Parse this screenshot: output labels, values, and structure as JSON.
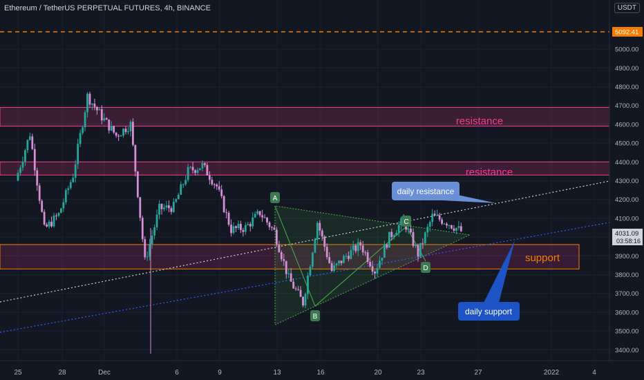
{
  "title": "Ethereum / TetherUS PERPETUAL FUTURES, 4h, BINANCE",
  "currency": "USDT",
  "colors": {
    "background": "#131722",
    "axis_text": "#b2b5be",
    "grid": "#1c2130",
    "up_candle": "#26a69a",
    "down_candle": "#d48fd6",
    "resistance": "#f23e8c",
    "support": "#f57c00",
    "triangle": "#4caf50",
    "trend_white": "#d1d4dc",
    "trend_blue": "#2962ff",
    "callout_resistance": "#6b8fd6",
    "callout_support": "#1e53c5",
    "price_label_bg": "#d1d4dc",
    "high_line": "#f57c00"
  },
  "labels": {
    "high_price": "5092.41",
    "current_price": "4031.09",
    "countdown": "03:58:16",
    "resistance_1": "resistance",
    "resistance_2": "resistance",
    "support": "support",
    "daily_resistance": "daily resistance",
    "daily_support": "daily support"
  },
  "chart_data": {
    "type": "candlestick",
    "title": "Ethereum / TetherUS PERPETUAL FUTURES, 4h, BINANCE",
    "ylim": [
      3370,
      5200
    ],
    "y_ticks": [
      5000,
      4900,
      4800,
      4700,
      4600,
      4500,
      4400,
      4300,
      4200,
      4100,
      4000,
      3900,
      3800,
      3700,
      3600,
      3500,
      3400
    ],
    "x_ticks": [
      "25",
      "28",
      "Dec",
      "6",
      "9",
      "13",
      "16",
      "20",
      "23",
      "27",
      "2022",
      "4"
    ],
    "price": [
      {
        "x": "25",
        "y": 4300
      },
      {
        "x": "26",
        "y": 4550
      },
      {
        "x": "27",
        "y": 4040
      },
      {
        "x": "28",
        "y": 4120
      },
      {
        "x": "29",
        "y": 4330
      },
      {
        "x": "30",
        "y": 4750
      },
      {
        "x": "Dec",
        "y": 4640
      },
      {
        "x": "2",
        "y": 4540
      },
      {
        "x": "3",
        "y": 4600
      },
      {
        "x": "4",
        "y": 3870
      },
      {
        "x": "5",
        "y": 4150
      },
      {
        "x": "6",
        "y": 4160
      },
      {
        "x": "7",
        "y": 4350
      },
      {
        "x": "8",
        "y": 4380
      },
      {
        "x": "9",
        "y": 4270
      },
      {
        "x": "10",
        "y": 4040
      },
      {
        "x": "11",
        "y": 4050
      },
      {
        "x": "12",
        "y": 4130
      },
      {
        "x": "13",
        "y": 4030
      },
      {
        "x": "14",
        "y": 3780
      },
      {
        "x": "15",
        "y": 3650
      },
      {
        "x": "16",
        "y": 4080
      },
      {
        "x": "17",
        "y": 3820
      },
      {
        "x": "18",
        "y": 3900
      },
      {
        "x": "19",
        "y": 3960
      },
      {
        "x": "20",
        "y": 3820
      },
      {
        "x": "21",
        "y": 4000
      },
      {
        "x": "22",
        "y": 4090
      },
      {
        "x": "23",
        "y": 3910
      },
      {
        "x": "24",
        "y": 4110
      },
      {
        "x": "25",
        "y": 4080
      },
      {
        "x": "26",
        "y": 4031
      }
    ],
    "levels": [
      {
        "name": "resistance",
        "low": 4590,
        "high": 4690
      },
      {
        "name": "resistance",
        "low": 4330,
        "high": 4400
      },
      {
        "name": "support",
        "low": 3830,
        "high": 3960
      }
    ],
    "high_line": 5092.41,
    "last_price": 4031.09,
    "pattern_points": [
      {
        "label": "A",
        "x": "13",
        "y": 4160
      },
      {
        "label": "B",
        "x": "15",
        "y": 3650
      },
      {
        "label": "C",
        "x": "22",
        "y": 4090
      },
      {
        "label": "D",
        "x": "23",
        "y": 3910
      }
    ]
  }
}
